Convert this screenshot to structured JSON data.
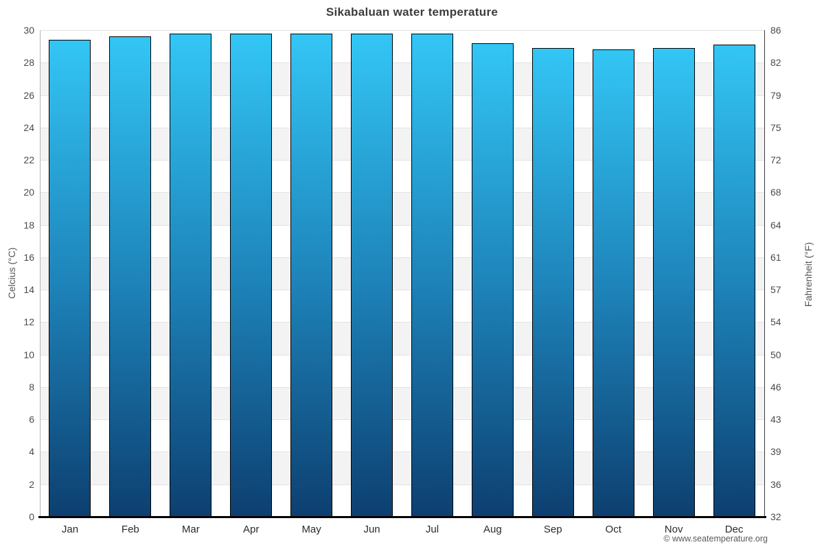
{
  "header": {
    "title": "Sikabaluan water temperature"
  },
  "chart_data": {
    "type": "bar",
    "title": "Sikabaluan water temperature",
    "categories": [
      "Jan",
      "Feb",
      "Mar",
      "Apr",
      "May",
      "Jun",
      "Jul",
      "Aug",
      "Sep",
      "Oct",
      "Nov",
      "Dec"
    ],
    "values": [
      29.4,
      29.6,
      29.8,
      29.8,
      29.8,
      29.8,
      29.8,
      29.2,
      28.9,
      28.8,
      28.9,
      29.1
    ],
    "unit": "°C",
    "ylabel_left": "Celcius (°C)",
    "ylabel_right": "Fahrenheit (°F)",
    "ylim": [
      0,
      30
    ],
    "yticks_celsius": [
      30,
      28,
      26,
      24,
      22,
      20,
      18,
      16,
      14,
      12,
      10,
      8,
      6,
      4,
      2,
      0
    ],
    "yticks_fahrenheit": [
      86,
      82,
      79,
      75,
      72,
      68,
      64,
      61,
      57,
      54,
      50,
      46,
      43,
      39,
      36,
      32
    ],
    "legend": "none",
    "grid": "alternating-bands",
    "colors": {
      "bar_top": "#33c6f5",
      "bar_mid": "#1d82b8",
      "bar_bottom": "#0d3f70",
      "bar_border": "#000000",
      "band_white": "#ffffff",
      "band_alt": "#f3f3f3",
      "gridline": "#e2e2e2",
      "axis_left_line": "#b3b3b3",
      "axis_right_line": "#3a3a3a",
      "axis_bottom_line": "#000000",
      "title_color": "#3c3c3c",
      "tick_color": "#4a4a4a",
      "axis_title_color": "#555555"
    }
  },
  "footer": {
    "watermark": "© www.seatemperature.org"
  }
}
